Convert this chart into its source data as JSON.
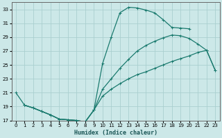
{
  "xlabel": "Humidex (Indice chaleur)",
  "bg_color": "#cce8e8",
  "grid_color": "#aacfcf",
  "line_color": "#1a7a6e",
  "xlim": [
    -0.5,
    23.5
  ],
  "ylim": [
    17,
    34
  ],
  "xticks": [
    0,
    1,
    2,
    3,
    4,
    5,
    6,
    7,
    8,
    9,
    10,
    11,
    12,
    13,
    14,
    15,
    16,
    17,
    18,
    19,
    20,
    21,
    22,
    23
  ],
  "yticks": [
    17,
    19,
    21,
    23,
    25,
    27,
    29,
    31,
    33
  ],
  "line1_x": [
    0,
    1,
    2,
    3,
    4,
    5,
    6,
    7,
    8,
    9,
    10,
    11,
    12,
    13,
    14,
    15,
    16,
    17,
    18,
    19,
    20,
    21,
    22,
    23
  ],
  "line1_y": [
    21.0,
    19.2,
    18.8,
    18.3,
    17.8,
    17.2,
    17.1,
    17.0,
    16.8,
    18.5,
    25.2,
    29.0,
    32.5,
    33.3,
    33.2,
    32.9,
    32.5,
    31.5,
    30.4,
    30.3,
    30.2,
    null,
    null,
    null
  ],
  "line2_x": [
    1,
    2,
    3,
    4,
    5,
    6,
    7,
    8,
    9,
    10,
    11,
    12,
    13,
    14,
    15,
    16,
    17,
    18,
    19,
    20,
    21,
    22,
    23
  ],
  "line2_y": [
    19.2,
    18.8,
    18.3,
    17.8,
    17.2,
    17.1,
    17.0,
    16.8,
    18.5,
    21.5,
    23.0,
    24.5,
    25.8,
    27.0,
    27.8,
    28.4,
    28.9,
    29.3,
    29.2,
    28.8,
    28.0,
    27.1,
    24.2
  ],
  "line3_x": [
    1,
    2,
    3,
    4,
    5,
    6,
    7,
    8,
    9,
    10,
    11,
    12,
    13,
    14,
    15,
    16,
    17,
    18,
    19,
    20,
    21,
    22,
    23
  ],
  "line3_y": [
    19.2,
    18.8,
    18.3,
    17.8,
    17.2,
    17.1,
    17.0,
    16.8,
    18.5,
    20.5,
    21.5,
    22.3,
    23.0,
    23.6,
    24.0,
    24.5,
    25.0,
    25.5,
    25.9,
    26.3,
    26.8,
    27.1,
    24.2
  ]
}
